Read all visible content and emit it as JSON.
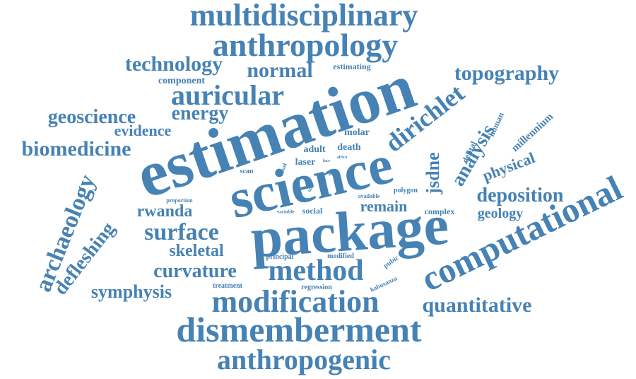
{
  "cloud": {
    "color": "#4682b4",
    "words": [
      {
        "text": "estimation",
        "weight": 100
      },
      {
        "text": "science",
        "weight": 88
      },
      {
        "text": "package",
        "weight": 82
      },
      {
        "text": "computational",
        "weight": 60
      },
      {
        "text": "multidisciplinary",
        "weight": 52
      },
      {
        "text": "anthropology",
        "weight": 50
      },
      {
        "text": "dismemberment",
        "weight": 58
      },
      {
        "text": "modification",
        "weight": 52
      },
      {
        "text": "method",
        "weight": 46
      },
      {
        "text": "auricular",
        "weight": 44
      },
      {
        "text": "anthropogenic",
        "weight": 42
      },
      {
        "text": "dirichlet",
        "weight": 40
      },
      {
        "text": "surface",
        "weight": 38
      },
      {
        "text": "archaeology",
        "weight": 38
      },
      {
        "text": "topography",
        "weight": 32
      },
      {
        "text": "technology",
        "weight": 30
      },
      {
        "text": "normal",
        "weight": 30
      },
      {
        "text": "quantitative",
        "weight": 30
      },
      {
        "text": "biomedicine",
        "weight": 30
      },
      {
        "text": "geoscience",
        "weight": 28
      },
      {
        "text": "energy",
        "weight": 28
      },
      {
        "text": "curvature",
        "weight": 28
      },
      {
        "text": "analysis",
        "weight": 28
      },
      {
        "text": "jsdne",
        "weight": 28
      },
      {
        "text": "deposition",
        "weight": 28
      },
      {
        "text": "defleshing",
        "weight": 28
      },
      {
        "text": "symphysis",
        "weight": 26
      },
      {
        "text": "remain",
        "weight": 24
      },
      {
        "text": "rwanda",
        "weight": 24
      },
      {
        "text": "skeletal",
        "weight": 24
      },
      {
        "text": "physical",
        "weight": 22
      },
      {
        "text": "evidence",
        "weight": 22
      },
      {
        "text": "geology",
        "weight": 20
      },
      {
        "text": "millennium",
        "weight": 16
      },
      {
        "text": "component",
        "weight": 14
      },
      {
        "text": "estimating",
        "weight": 12
      },
      {
        "text": "death",
        "weight": 14
      },
      {
        "text": "adult",
        "weight": 14
      },
      {
        "text": "molar",
        "weight": 14
      },
      {
        "text": "laser",
        "weight": 14
      },
      {
        "text": "dental",
        "weight": 12
      },
      {
        "text": "human",
        "weight": 12
      },
      {
        "text": "social",
        "weight": 12
      },
      {
        "text": "complex",
        "weight": 12
      },
      {
        "text": "principal",
        "weight": 10
      },
      {
        "text": "modified",
        "weight": 10
      },
      {
        "text": "pubic",
        "weight": 10
      },
      {
        "text": "treatment",
        "weight": 10
      },
      {
        "text": "regression",
        "weight": 10
      },
      {
        "text": "kabusanza",
        "weight": 10
      },
      {
        "text": "scan",
        "weight": 10
      },
      {
        "text": "polygon",
        "weight": 10
      },
      {
        "text": "proportion",
        "weight": 8
      },
      {
        "text": "available",
        "weight": 8
      },
      {
        "text": "variable",
        "weight": 8
      },
      {
        "text": "novel",
        "weight": 8
      },
      {
        "text": "africa",
        "weight": 6
      },
      {
        "text": "face",
        "weight": 6
      },
      {
        "text": "life",
        "weight": 6
      },
      {
        "text": "total",
        "weight": 6
      },
      {
        "text": "tool",
        "weight": 6
      },
      {
        "text": "size",
        "weight": 6
      },
      {
        "text": "cut",
        "weight": 6
      }
    ]
  }
}
